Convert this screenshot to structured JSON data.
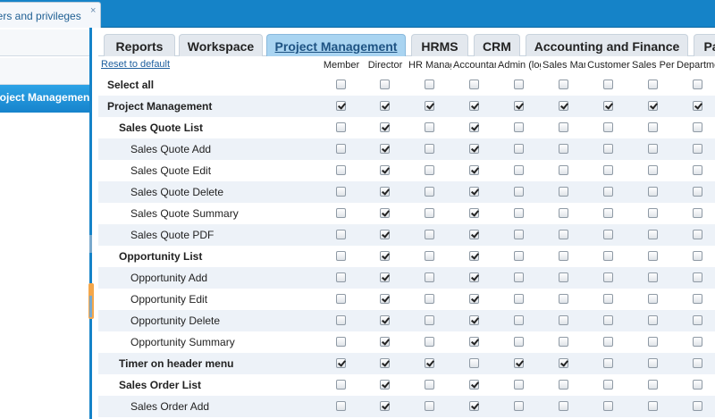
{
  "doc_tab": {
    "label": "Users and privileges",
    "close_glyph": "×"
  },
  "nav": {
    "active_item": "Project Management"
  },
  "module_tabs": [
    {
      "label": "Reports",
      "active": false
    },
    {
      "label": "Workspace",
      "active": false
    },
    {
      "label": "Project Management",
      "active": true
    },
    {
      "label": "HRMS",
      "active": false
    },
    {
      "label": "CRM",
      "active": false
    },
    {
      "label": "Accounting and Finance",
      "active": false
    },
    {
      "label": "Pa",
      "active": false
    }
  ],
  "grid": {
    "reset_label": "Reset to default",
    "columns": [
      "Member",
      "Director",
      "HR Manager",
      "Accountant",
      "Admin (logistics)",
      "Sales Manager",
      "Customer",
      "Sales Person",
      "Department"
    ],
    "rows": [
      {
        "label": "Select all",
        "level": 0,
        "bold": true,
        "checks": [
          false,
          false,
          false,
          false,
          false,
          false,
          false,
          false,
          false
        ]
      },
      {
        "label": "Project Management",
        "level": 0,
        "bold": true,
        "checks": [
          true,
          true,
          true,
          true,
          true,
          true,
          true,
          true,
          true
        ]
      },
      {
        "label": "Sales Quote List",
        "level": 1,
        "bold": true,
        "checks": [
          false,
          true,
          false,
          true,
          false,
          false,
          false,
          false,
          false
        ]
      },
      {
        "label": "Sales Quote Add",
        "level": 2,
        "bold": false,
        "checks": [
          false,
          true,
          false,
          true,
          false,
          false,
          false,
          false,
          false
        ]
      },
      {
        "label": "Sales Quote Edit",
        "level": 2,
        "bold": false,
        "checks": [
          false,
          true,
          false,
          true,
          false,
          false,
          false,
          false,
          false
        ]
      },
      {
        "label": "Sales Quote Delete",
        "level": 2,
        "bold": false,
        "checks": [
          false,
          true,
          false,
          true,
          false,
          false,
          false,
          false,
          false
        ]
      },
      {
        "label": "Sales Quote Summary",
        "level": 2,
        "bold": false,
        "checks": [
          false,
          true,
          false,
          true,
          false,
          false,
          false,
          false,
          false
        ]
      },
      {
        "label": "Sales Quote PDF",
        "level": 2,
        "bold": false,
        "checks": [
          false,
          true,
          false,
          true,
          false,
          false,
          false,
          false,
          false
        ]
      },
      {
        "label": "Opportunity List",
        "level": 1,
        "bold": true,
        "checks": [
          false,
          true,
          false,
          true,
          false,
          false,
          false,
          false,
          false
        ]
      },
      {
        "label": "Opportunity Add",
        "level": 2,
        "bold": false,
        "checks": [
          false,
          true,
          false,
          true,
          false,
          false,
          false,
          false,
          false
        ]
      },
      {
        "label": "Opportunity Edit",
        "level": 2,
        "bold": false,
        "checks": [
          false,
          true,
          false,
          true,
          false,
          false,
          false,
          false,
          false
        ]
      },
      {
        "label": "Opportunity Delete",
        "level": 2,
        "bold": false,
        "checks": [
          false,
          true,
          false,
          true,
          false,
          false,
          false,
          false,
          false
        ]
      },
      {
        "label": "Opportunity Summary",
        "level": 2,
        "bold": false,
        "checks": [
          false,
          true,
          false,
          true,
          false,
          false,
          false,
          false,
          false
        ]
      },
      {
        "label": "Timer on header menu",
        "level": 1,
        "bold": true,
        "checks": [
          true,
          true,
          true,
          false,
          true,
          true,
          false,
          false,
          false
        ]
      },
      {
        "label": "Sales Order List",
        "level": 1,
        "bold": true,
        "checks": [
          false,
          true,
          false,
          true,
          false,
          false,
          false,
          false,
          false
        ]
      },
      {
        "label": "Sales Order Add",
        "level": 2,
        "bold": false,
        "checks": [
          false,
          true,
          false,
          true,
          false,
          false,
          false,
          false,
          false
        ]
      }
    ]
  },
  "colors": {
    "accent": "#1583c8",
    "active_tab": "#a9d4f1",
    "row_alt": "#edf2f8"
  }
}
